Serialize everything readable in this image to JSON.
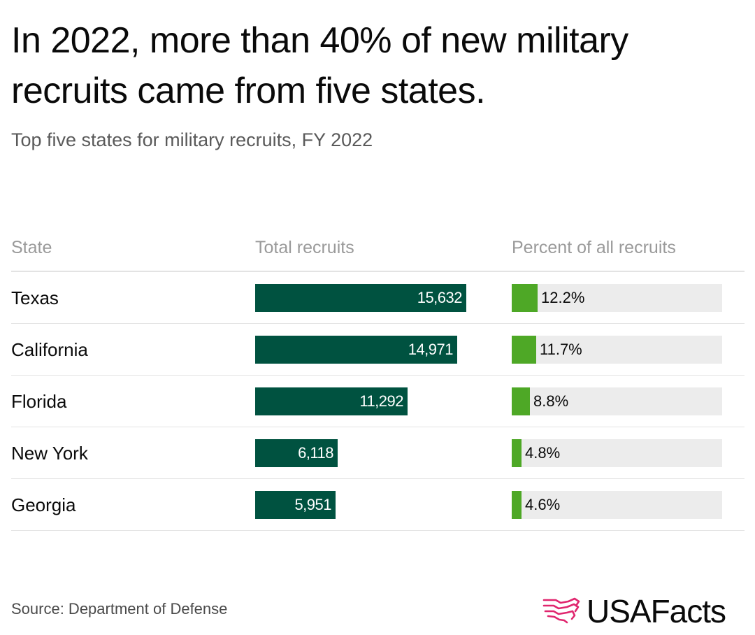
{
  "title": "In 2022, more than 40% of new military recruits came from five states.",
  "subtitle": "Top five states for military recruits, FY 2022",
  "headers": {
    "state": "State",
    "total": "Total recruits",
    "percent": "Percent of all recruits"
  },
  "source": "Source: Department of Defense",
  "brand": "USAFacts",
  "colors": {
    "total_bar": "#005240",
    "percent_bar": "#4ea826",
    "percent_track": "#ececec",
    "brand_icon": "#e0266e"
  },
  "chart_data": {
    "type": "bar",
    "title": "In 2022, more than 40% of new military recruits came from five states.",
    "subtitle": "Top five states for military recruits, FY 2022",
    "categories": [
      "Texas",
      "California",
      "Florida",
      "New York",
      "Georgia"
    ],
    "series": [
      {
        "name": "Total recruits",
        "values": [
          15632,
          14971,
          11292,
          6118,
          5951
        ],
        "labels": [
          "15,632",
          "14,971",
          "11,292",
          "6,118",
          "5,951"
        ],
        "max": 15632
      },
      {
        "name": "Percent of all recruits",
        "values": [
          12.2,
          11.7,
          8.8,
          4.8,
          4.6
        ],
        "labels": [
          "12.2%",
          "11.7%",
          "8.8%",
          "4.8%",
          "4.6%"
        ],
        "max": 100
      }
    ],
    "xlabel": "",
    "ylabel": ""
  }
}
